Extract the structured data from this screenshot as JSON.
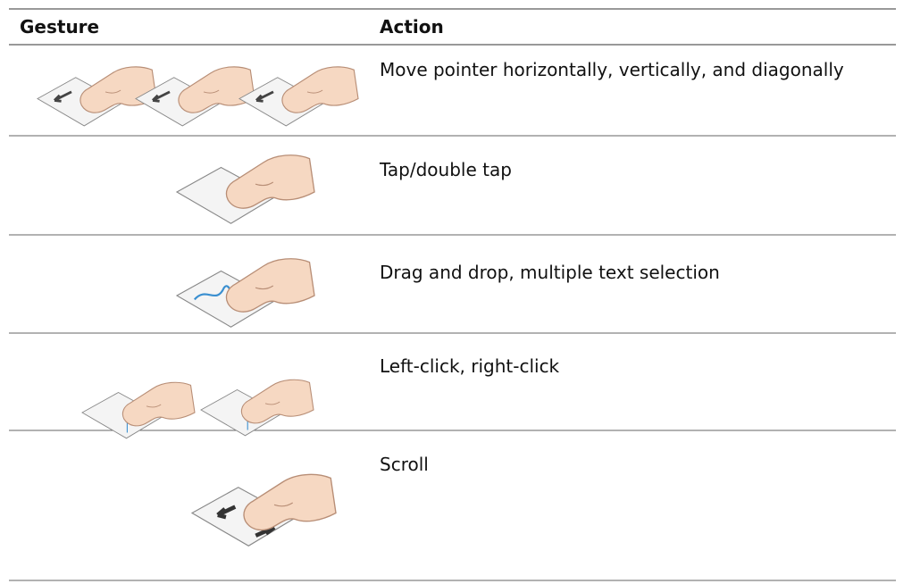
{
  "table": {
    "headers": [
      "Gesture",
      "Action"
    ],
    "rows": [
      "Move pointer horizontally, vertically, and diagonally",
      "Tap/double tap",
      "Drag and drop, multiple text selection",
      "Left-click, right-click",
      "Scroll"
    ]
  }
}
